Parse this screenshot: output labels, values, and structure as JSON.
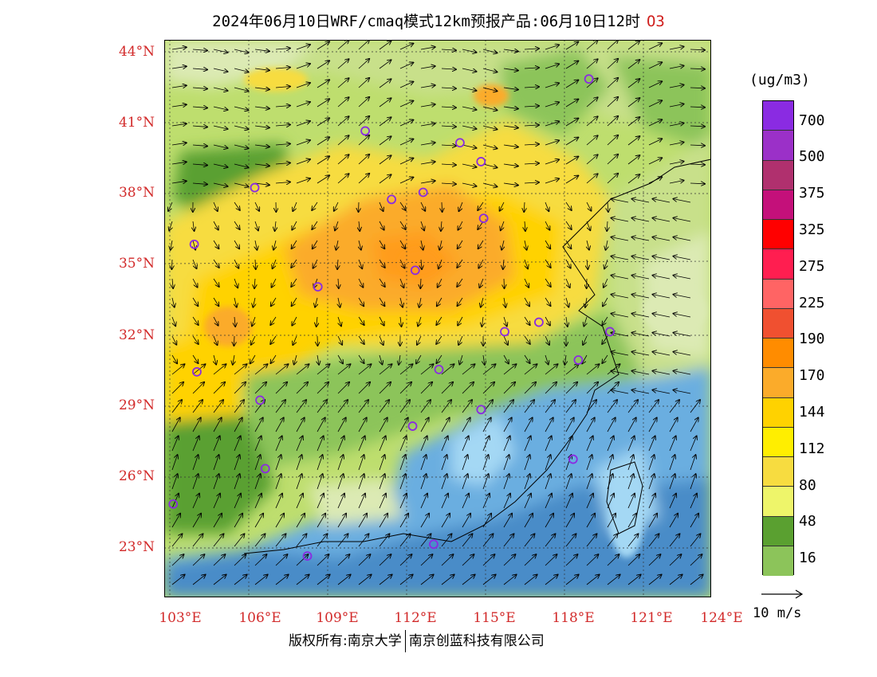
{
  "title": {
    "text": "2024年06月10日WRF/cmaq模式12km预报产品:06月10日12时",
    "species": "O3"
  },
  "axes": {
    "lat_labels": [
      "44°N",
      "41°N",
      "38°N",
      "35°N",
      "32°N",
      "29°N",
      "26°N",
      "23°N"
    ],
    "lon_labels": [
      "103°E",
      "106°E",
      "109°E",
      "112°E",
      "115°E",
      "118°E",
      "121°E",
      "124°E"
    ]
  },
  "legend": {
    "unit": "(ug/m3)",
    "labels": [
      "700",
      "500",
      "375",
      "325",
      "275",
      "225",
      "190",
      "170",
      "144",
      "112",
      "80",
      "48",
      "16"
    ],
    "colors": [
      "#8a2be2",
      "#9b30c8",
      "#b0306e",
      "#c4107a",
      "#ff0000",
      "#ff1e50",
      "#ff6464",
      "#f05030",
      "#ff8c00",
      "#fbab2a",
      "#ffd200",
      "#ffee00",
      "#f7dc40",
      "#eef56a",
      "#5aa030",
      "#8cc45a",
      "#bede6e",
      "#c8e08a",
      "#dceab4",
      "#4a8cc8",
      "#6aaee0",
      "#a4d8f4",
      "#d4eefa",
      "#ffffff"
    ]
  },
  "wind_reference": {
    "label": "10 m/s"
  },
  "footer": {
    "left": "版权所有:南京大学",
    "right": "南京创蓝科技有限公司"
  },
  "sites": [
    {
      "lon": 119.0,
      "lat": 43.0
    },
    {
      "lon": 110.5,
      "lat": 40.8
    },
    {
      "lon": 114.1,
      "lat": 40.3
    },
    {
      "lon": 114.9,
      "lat": 39.5
    },
    {
      "lon": 106.3,
      "lat": 38.4
    },
    {
      "lon": 111.5,
      "lat": 37.9
    },
    {
      "lon": 112.7,
      "lat": 38.2
    },
    {
      "lon": 115.0,
      "lat": 37.1
    },
    {
      "lon": 104.0,
      "lat": 36.0
    },
    {
      "lon": 112.4,
      "lat": 34.9
    },
    {
      "lon": 108.7,
      "lat": 34.2
    },
    {
      "lon": 115.8,
      "lat": 32.3
    },
    {
      "lon": 117.1,
      "lat": 32.7
    },
    {
      "lon": 119.8,
      "lat": 32.3
    },
    {
      "lon": 104.1,
      "lat": 30.6
    },
    {
      "lon": 113.3,
      "lat": 30.7
    },
    {
      "lon": 118.6,
      "lat": 31.1
    },
    {
      "lon": 106.5,
      "lat": 29.4
    },
    {
      "lon": 114.9,
      "lat": 29.0
    },
    {
      "lon": 112.3,
      "lat": 28.3
    },
    {
      "lon": 118.4,
      "lat": 26.9
    },
    {
      "lon": 106.7,
      "lat": 26.5
    },
    {
      "lon": 103.2,
      "lat": 25.0
    },
    {
      "lon": 108.3,
      "lat": 22.8
    },
    {
      "lon": 113.1,
      "lat": 23.3
    }
  ]
}
